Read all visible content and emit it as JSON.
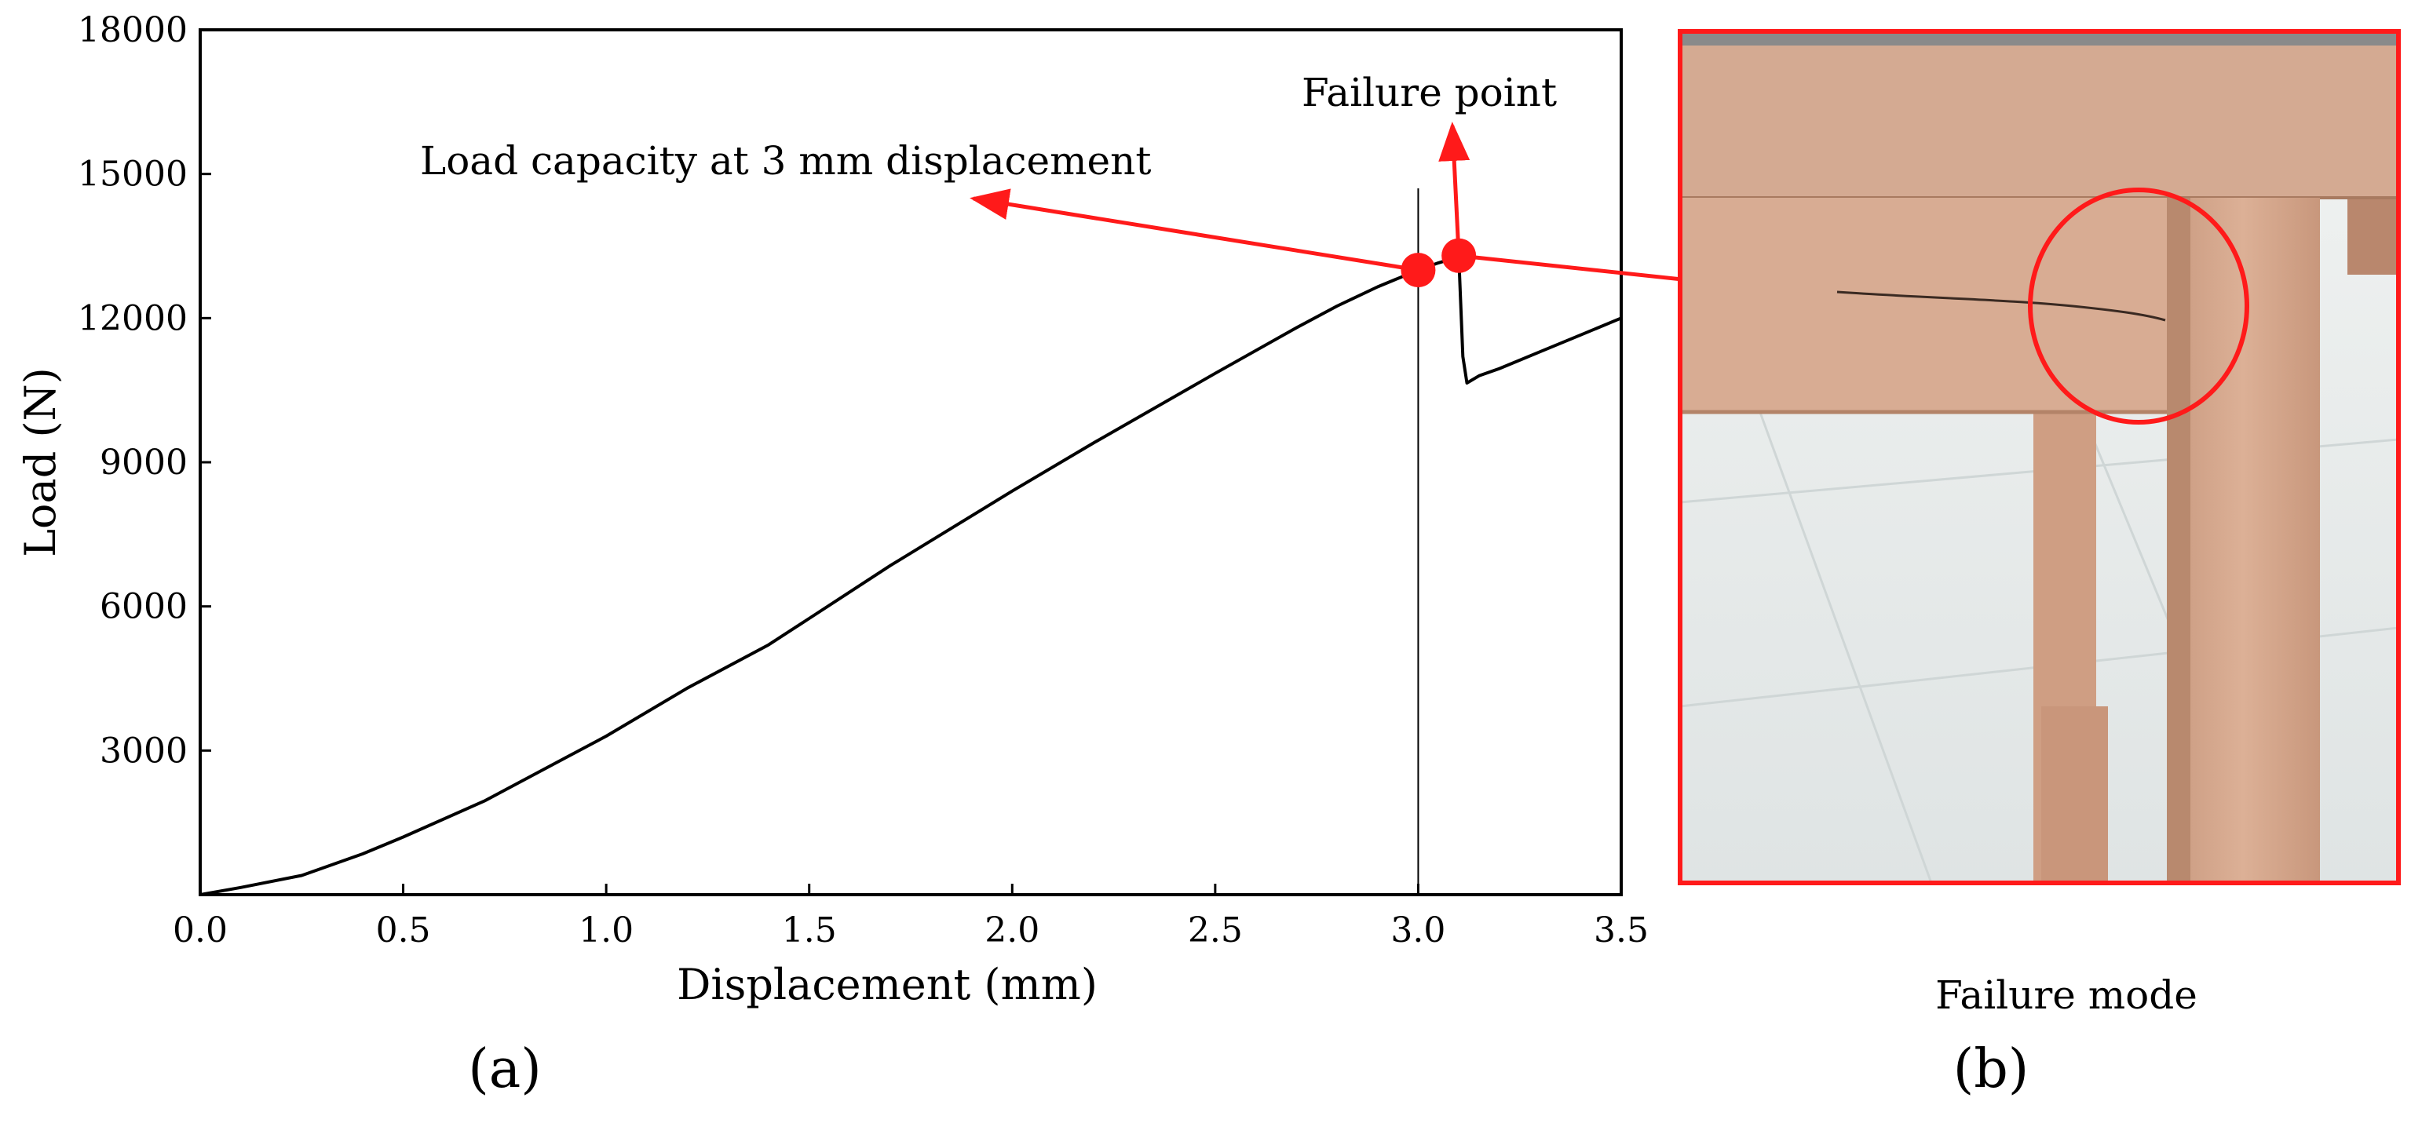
{
  "chart_data": {
    "type": "line",
    "xlabel": "Displacement (mm)",
    "ylabel": "Load (N)",
    "xlim": [
      0,
      3.5
    ],
    "ylim": [
      0,
      18000
    ],
    "xticks": [
      "0.0",
      "0.5",
      "1.0",
      "1.5",
      "2.0",
      "2.5",
      "3.0",
      "3.5"
    ],
    "yticks": [
      "3000",
      "6000",
      "9000",
      "12000",
      "15000",
      "18000"
    ],
    "grid": false,
    "reference_line_x": 3.0,
    "series": [
      {
        "x": [
          0.0,
          0.1,
          0.25,
          0.4,
          0.5,
          0.7,
          0.9,
          1.0,
          1.2,
          1.4,
          1.5,
          1.7,
          2.0,
          2.2,
          2.5,
          2.7,
          2.8,
          2.9,
          3.0,
          3.05,
          3.09,
          3.1,
          3.11,
          3.12,
          3.15,
          3.2,
          3.3,
          3.4,
          3.5
        ],
        "y": [
          0,
          150,
          400,
          850,
          1200,
          1950,
          2850,
          3300,
          4300,
          5200,
          5750,
          6850,
          8400,
          9400,
          10850,
          11800,
          12250,
          12650,
          13000,
          13150,
          13250,
          13300,
          11200,
          10650,
          10800,
          10950,
          11300,
          11650,
          12000
        ]
      }
    ],
    "points": [
      {
        "x": 3.0,
        "y": 13000
      },
      {
        "x": 3.1,
        "y": 13300
      }
    ],
    "annotations": [
      {
        "text": "Load capacity at 3 mm displacement"
      },
      {
        "text": "Failure point"
      }
    ]
  },
  "panels": {
    "a_label": "(a)",
    "b_label": "(b)",
    "b_caption": "Failure mode"
  },
  "colors": {
    "line": "#000000",
    "accent": "#ff1a1a",
    "wood": "#d9ab90",
    "floor": "#e8ecec"
  }
}
